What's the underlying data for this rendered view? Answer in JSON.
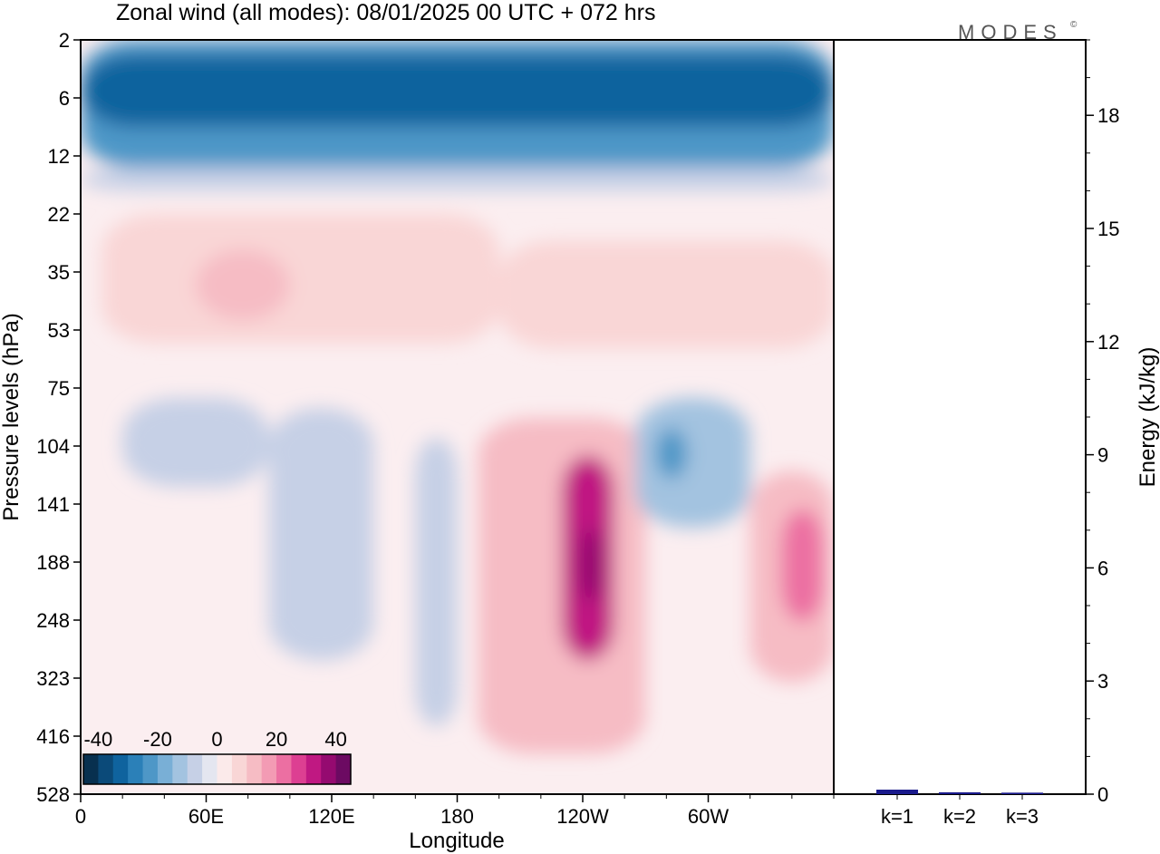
{
  "title": "Zonal wind (all modes):  08/01/2025  00 UTC  + 072 hrs",
  "logo": "MODES",
  "logo_mark": "©",
  "chart_data": [
    {
      "type": "heatmap",
      "xlabel": "Longitude",
      "ylabel": "Pressure levels (hPa)",
      "x_ticks": [
        "0",
        "60E",
        "120E",
        "180",
        "120W",
        "60W"
      ],
      "x_tick_degrees": [
        0,
        60,
        120,
        180,
        240,
        300
      ],
      "xlim": [
        0,
        360
      ],
      "y_ticks": [
        "2",
        "6",
        "12",
        "22",
        "35",
        "53",
        "75",
        "104",
        "141",
        "188",
        "248",
        "323",
        "416",
        "528"
      ],
      "colorbar": {
        "labels": [
          "-40",
          "-20",
          "0",
          "20",
          "40"
        ],
        "label_values": [
          -40,
          -20,
          0,
          20,
          40
        ],
        "range": [
          -45,
          45
        ],
        "colors": [
          "#08304f",
          "#0b4a79",
          "#0f639e",
          "#2b80b8",
          "#4e97c7",
          "#79afd6",
          "#a3c3e0",
          "#c6d0e6",
          "#e4e6f0",
          "#fbeaea",
          "#f9d6d6",
          "#f6bcc4",
          "#f39bb4",
          "#ec6fa2",
          "#dd3f92",
          "#c01882",
          "#950a70",
          "#6c0a62"
        ]
      },
      "regions": [
        {
          "lon": [
            0,
            360
          ],
          "p": [
            2,
            14
          ],
          "value": -25
        },
        {
          "lon": [
            0,
            360
          ],
          "p": [
            3,
            9
          ],
          "value": -35
        },
        {
          "lon": [
            0,
            360
          ],
          "p": [
            14,
            18
          ],
          "value": -8
        },
        {
          "lon": [
            10,
            200
          ],
          "p": [
            22,
            58
          ],
          "value": 6
        },
        {
          "lon": [
            200,
            360
          ],
          "p": [
            28,
            60
          ],
          "value": 5
        },
        {
          "lon": [
            55,
            100
          ],
          "p": [
            30,
            50
          ],
          "value": 10
        },
        {
          "lon": [
            20,
            90
          ],
          "p": [
            80,
            130
          ],
          "value": -8
        },
        {
          "lon": [
            90,
            140
          ],
          "p": [
            85,
            300
          ],
          "value": -7
        },
        {
          "lon": [
            160,
            180
          ],
          "p": [
            100,
            400
          ],
          "value": -7
        },
        {
          "lon": [
            190,
            270
          ],
          "p": [
            90,
            450
          ],
          "value": 12
        },
        {
          "lon": [
            230,
            255
          ],
          "p": [
            110,
            300
          ],
          "value": 30
        },
        {
          "lon": [
            238,
            250
          ],
          "p": [
            160,
            230
          ],
          "value": 38
        },
        {
          "lon": [
            265,
            320
          ],
          "p": [
            80,
            160
          ],
          "value": -14
        },
        {
          "lon": [
            275,
            290
          ],
          "p": [
            95,
            125
          ],
          "value": -25
        },
        {
          "lon": [
            320,
            360
          ],
          "p": [
            120,
            330
          ],
          "value": 14
        },
        {
          "lon": [
            335,
            355
          ],
          "p": [
            145,
            250
          ],
          "value": 22
        }
      ]
    },
    {
      "type": "bar",
      "ylabel": "Energy (kJ/kg)",
      "categories": [
        "k=1",
        "k=2",
        "k=3"
      ],
      "values": [
        0.12,
        0.05,
        0.04
      ],
      "ylim": [
        0,
        20
      ],
      "y_ticks": [
        0,
        3,
        6,
        9,
        12,
        15,
        18
      ],
      "bar_color": "#1a1a8c"
    }
  ]
}
